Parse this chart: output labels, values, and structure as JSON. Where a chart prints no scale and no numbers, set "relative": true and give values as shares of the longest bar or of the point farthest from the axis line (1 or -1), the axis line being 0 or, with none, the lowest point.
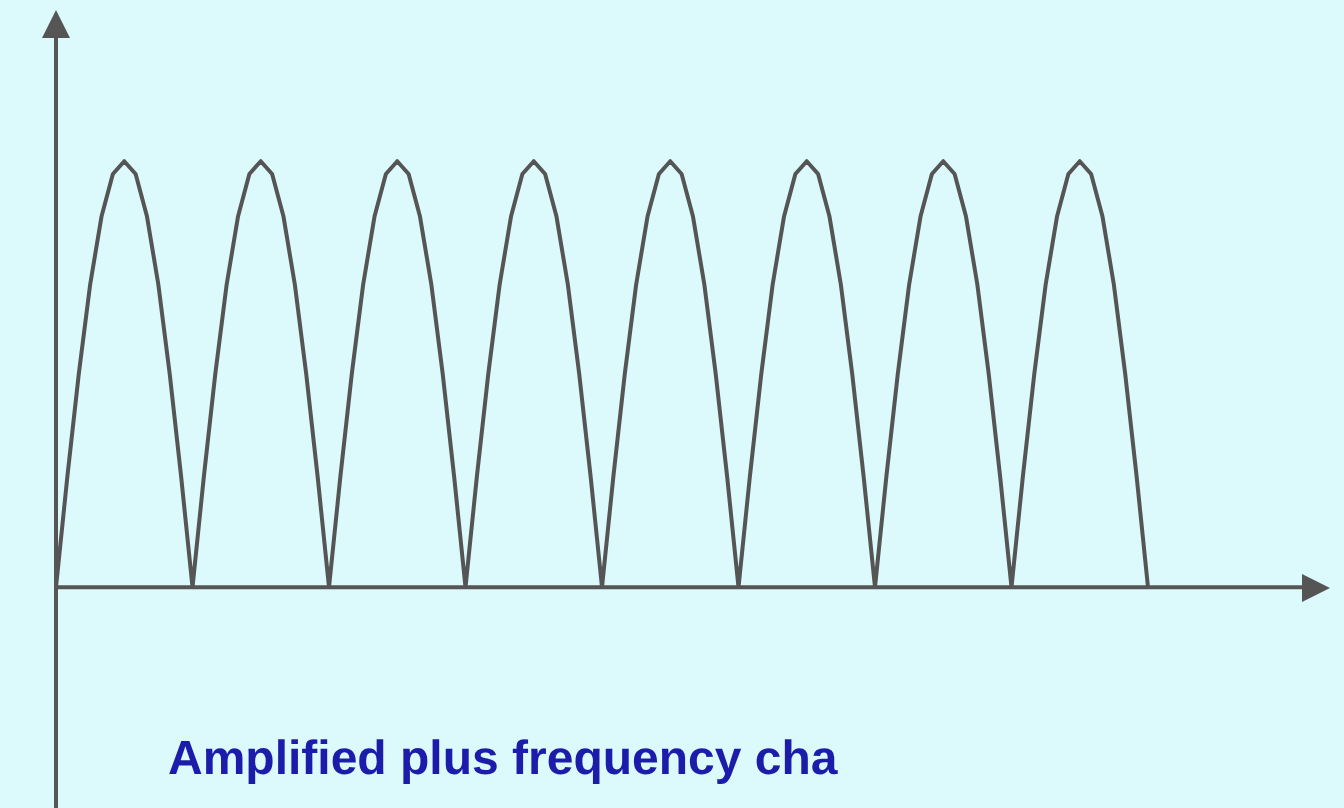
{
  "chart_data": {
    "type": "line",
    "title": "Amplified plus frequency cha",
    "relative": true,
    "marker": "none",
    "line_style": "solid",
    "categories": [
      null,
      null,
      null,
      null,
      null,
      null,
      null,
      null,
      null,
      null,
      null,
      null,
      null,
      null,
      null,
      null,
      null,
      null,
      null,
      null,
      null,
      null,
      null,
      null,
      null,
      null,
      null,
      null,
      null,
      null,
      null,
      null,
      null,
      null,
      null,
      null,
      null,
      null,
      null,
      null,
      null,
      null,
      null,
      null,
      null,
      null,
      null,
      null,
      null,
      null,
      null,
      null,
      null,
      null,
      null,
      null,
      null,
      null,
      null,
      null,
      null,
      null,
      null,
      null,
      null,
      null,
      null,
      null,
      null,
      null,
      null,
      null,
      null,
      null,
      null,
      null,
      null,
      null,
      null,
      null,
      null,
      null,
      null,
      null,
      null,
      null,
      null,
      null,
      null,
      null,
      null,
      null,
      null,
      null,
      null,
      null,
      null,
      null,
      null,
      null,
      null,
      null,
      null,
      null,
      null,
      null,
      null,
      null,
      null,
      null,
      null,
      null,
      null
    ],
    "series": [
      {
        "color": "#555555",
        "values": [
          0,
          0.26,
          0.5,
          0.71,
          0.87,
          0.97,
          1,
          0.97,
          0.87,
          0.71,
          0.5,
          0.26,
          0,
          0.26,
          0.5,
          0.71,
          0.87,
          0.97,
          1,
          0.97,
          0.87,
          0.71,
          0.5,
          0.26,
          0,
          0.26,
          0.5,
          0.71,
          0.87,
          0.97,
          1,
          0.97,
          0.87,
          0.71,
          0.5,
          0.26,
          0,
          0.26,
          0.5,
          0.71,
          0.87,
          0.97,
          1,
          0.97,
          0.87,
          0.71,
          0.5,
          0.26,
          0,
          0.26,
          0.5,
          0.71,
          0.87,
          0.97,
          1,
          0.97,
          0.87,
          0.71,
          0.5,
          0.26,
          0,
          0.26,
          0.5,
          0.71,
          0.87,
          0.97,
          1,
          0.97,
          0.87,
          0.71,
          0.5,
          0.26,
          0,
          0.26,
          0.5,
          0.71,
          0.87,
          0.97,
          1,
          0.97,
          0.87,
          0.71,
          0.5,
          0.26,
          0,
          0.26,
          0.5,
          0.71,
          0.87,
          0.97,
          1,
          0.97,
          0.87,
          0.71,
          0.5,
          0.26,
          0,
          null,
          null,
          null,
          null,
          null,
          null,
          null,
          null,
          null,
          null,
          null,
          null,
          null,
          null,
          null,
          null
        ]
      }
    ]
  }
}
